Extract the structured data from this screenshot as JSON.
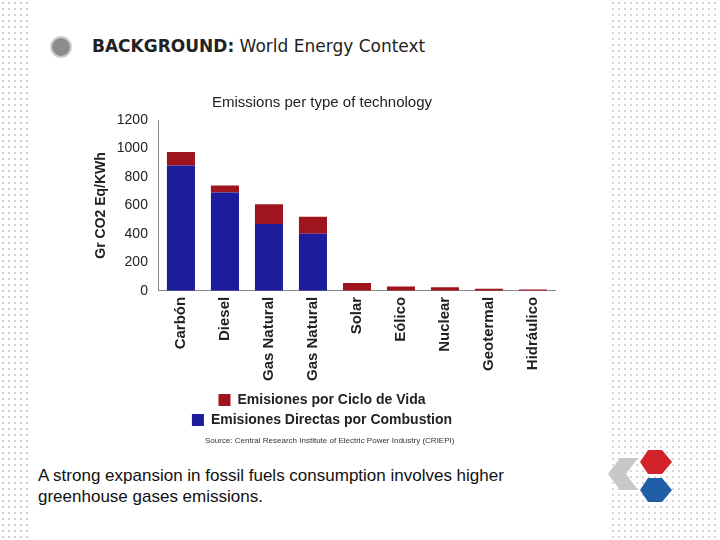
{
  "heading": {
    "label": "BACKGROUND:",
    "title": "World Energy Context"
  },
  "source": "Source: Central Research Institute of Electric Power Industry (CRIEPI)",
  "caption": "A strong expansion in fossil fuels consumption involves higher greenhouse gases emissions.",
  "chart_data": {
    "type": "bar",
    "title": "Emissions per type of technology",
    "y_label": "Gr CO2 Eq/KWh",
    "categories": [
      "Carbón",
      "Diesel",
      "Gas Natural",
      "Gas Natural",
      "Solar",
      "Eólico",
      "Nuclear",
      "Geotermal",
      "Hidráulico"
    ],
    "series": [
      {
        "name": "Emisiones Directas por Combustion",
        "color": "#1c1c9c",
        "values": [
          880,
          690,
          470,
          400,
          0,
          0,
          0,
          0,
          0
        ]
      },
      {
        "name": "Emisiones por Ciclo de Vida",
        "color": "#a0141e",
        "values": [
          95,
          50,
          138,
          120,
          55,
          30,
          25,
          15,
          10
        ]
      }
    ],
    "stacked": true,
    "ylim": [
      0,
      1200
    ],
    "yticks": [
      0,
      200,
      400,
      600,
      800,
      1000,
      1200
    ],
    "grid": false,
    "legend": "bottom"
  }
}
